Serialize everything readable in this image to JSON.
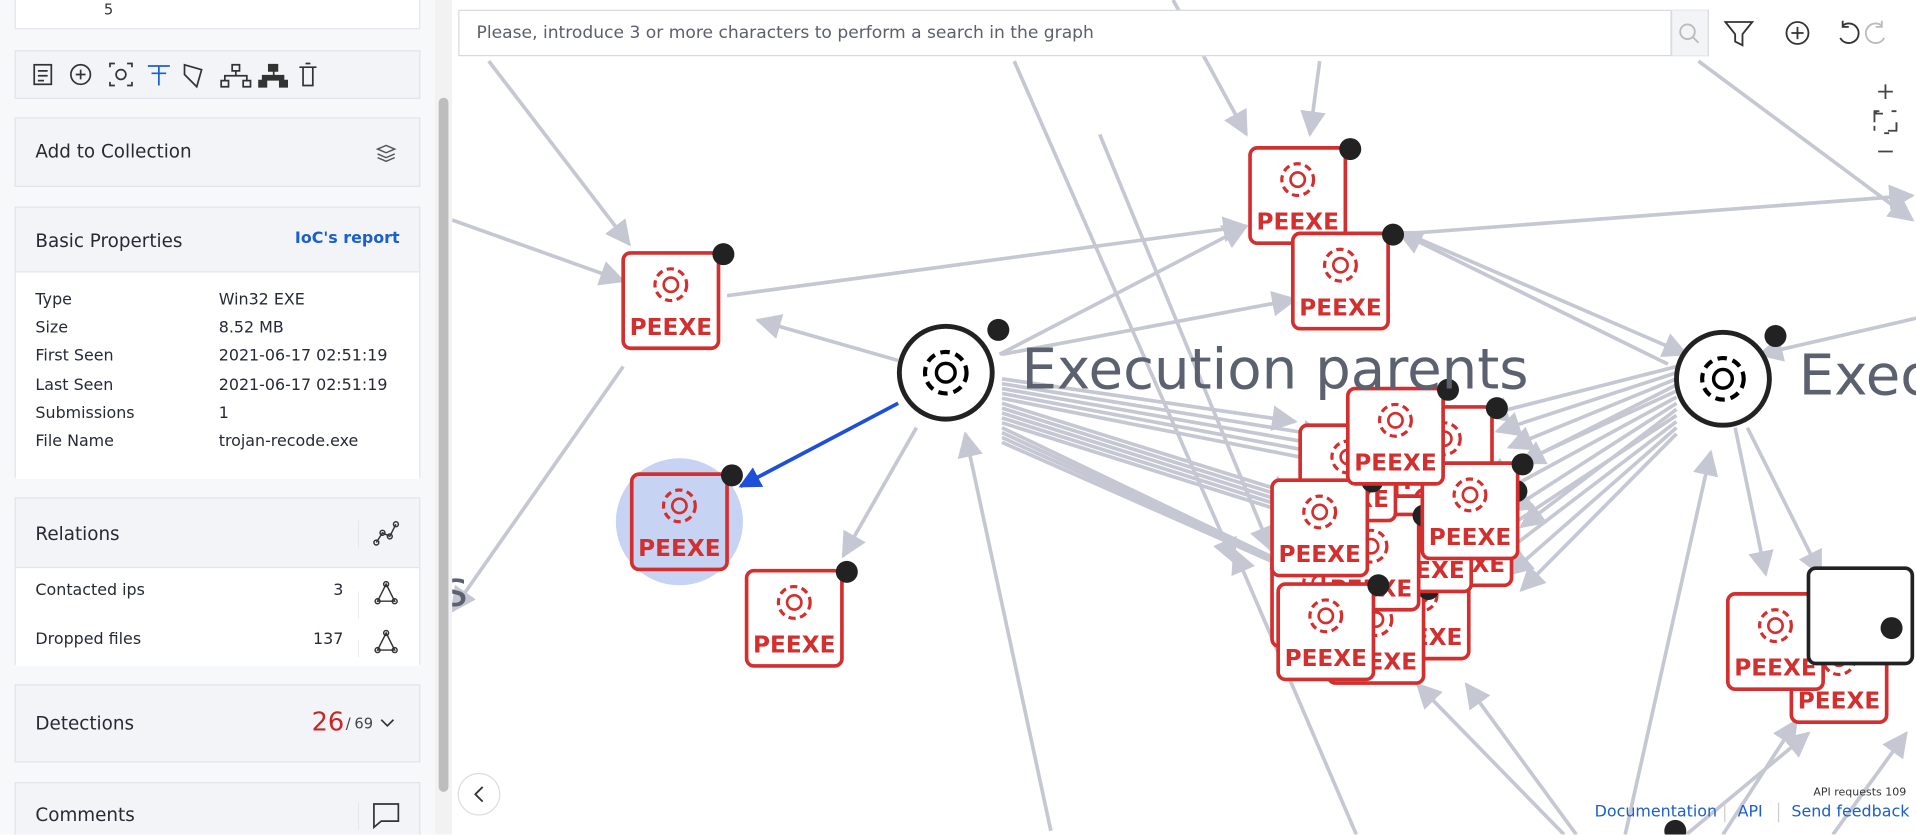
{
  "header": {
    "submissions_count": "5"
  },
  "collection": {
    "label": "Add to Collection"
  },
  "basic_properties": {
    "title": "Basic Properties",
    "link": "IoC's report",
    "rows": [
      [
        "Type",
        "Win32 EXE"
      ],
      [
        "Size",
        "8.52 MB"
      ],
      [
        "First Seen",
        "2021-06-17 02:51:19"
      ],
      [
        "Last Seen",
        "2021-06-17 02:51:19"
      ],
      [
        "Submissions",
        "1"
      ],
      [
        "File Name",
        "trojan-recode.exe"
      ]
    ]
  },
  "relations": {
    "title": "Relations",
    "rows": [
      {
        "label": "Contacted ips",
        "count": 3
      },
      {
        "label": "Dropped files",
        "count": 137
      }
    ]
  },
  "detections": {
    "title": "Detections",
    "positives": 26,
    "separator": "/",
    "total": 69
  },
  "comments": {
    "title": "Comments"
  },
  "search": {
    "placeholder": "Please, introduce 3 or more characters to perform a search in the graph"
  },
  "graph": {
    "file_type": "PEEXE",
    "group_label": "Execution parents",
    "group_label_right": "Exec",
    "group_label_left": "s"
  },
  "footer": {
    "api_requests": "API requests 109",
    "links": [
      "Documentation",
      "API",
      "Send feedback"
    ]
  }
}
